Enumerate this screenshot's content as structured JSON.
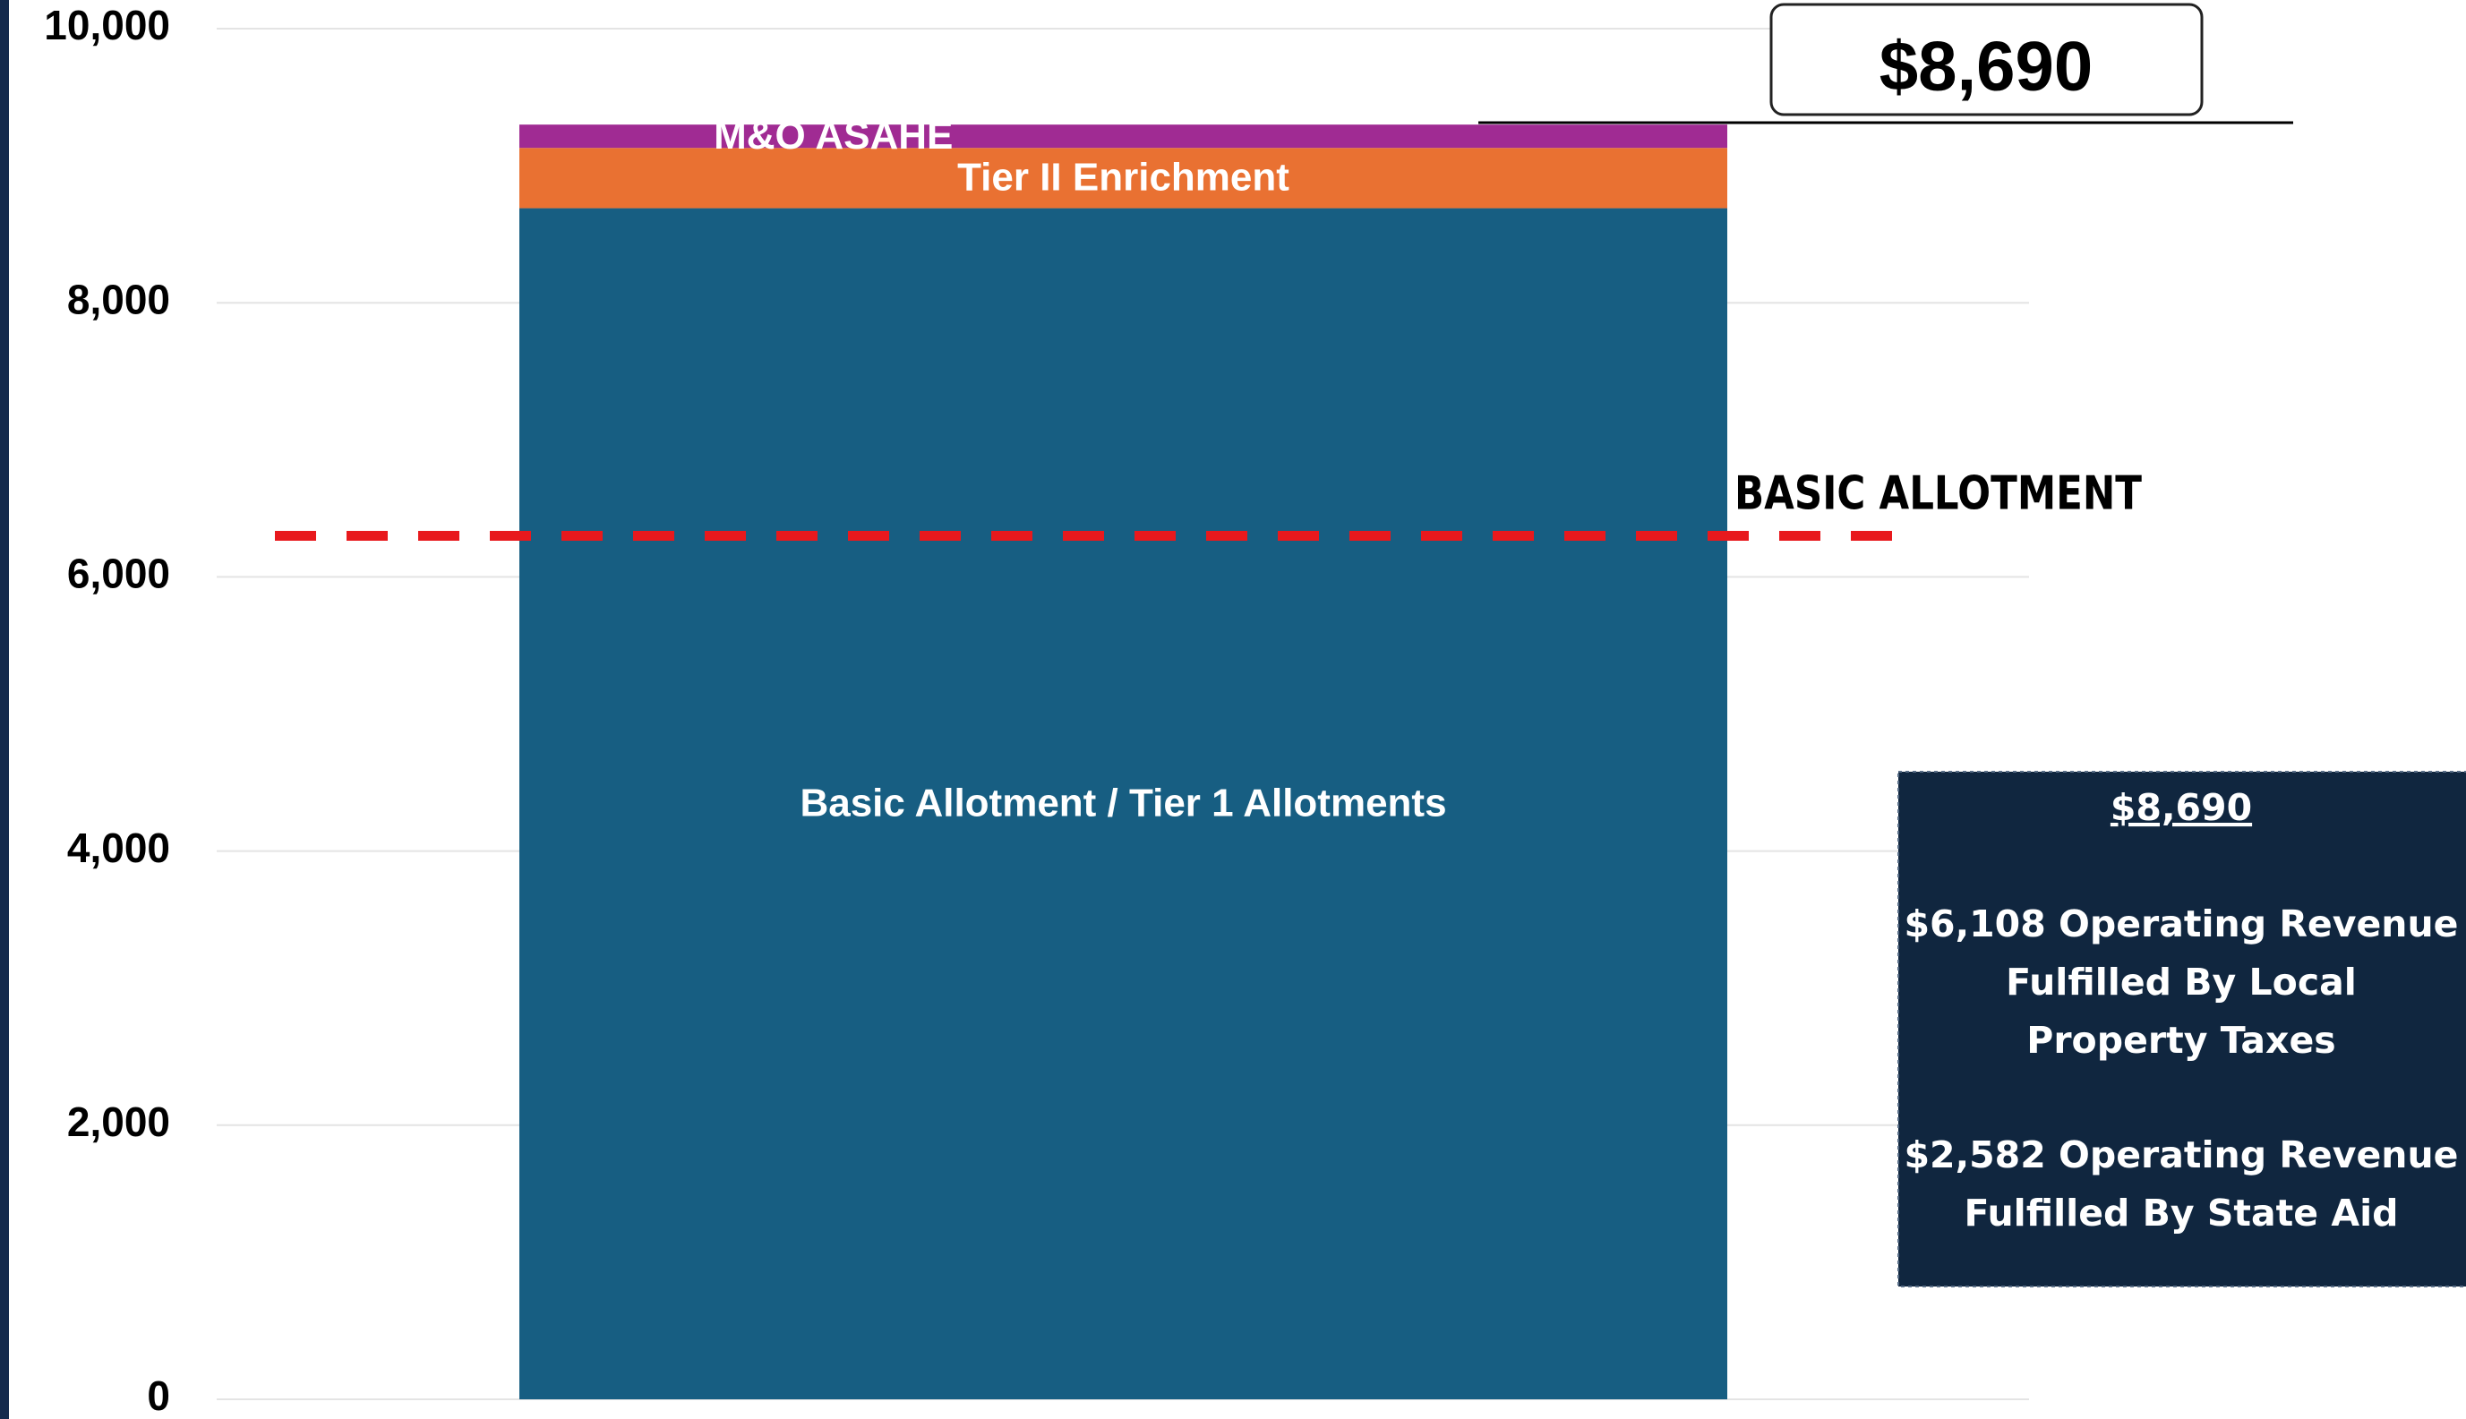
{
  "chart_data": {
    "type": "stacked-bar",
    "categories": [
      null
    ],
    "series": [
      {
        "name": "Basic Allotment / Tier 1 Allotments",
        "color": "#175e82",
        "values": [
          8690
        ]
      },
      {
        "name": "Tier II Enrichment",
        "color": "#e97132",
        "values": [
          440
        ]
      },
      {
        "name": "M&O ASAHE",
        "color": "#a02b93",
        "values": [
          170
        ]
      }
    ],
    "ylim": [
      0,
      10000
    ],
    "yticks": [
      0,
      {
        "value": 2000,
        "label": "2,000"
      },
      {
        "value": 4000,
        "label": "4,000"
      },
      {
        "value": 6000,
        "label": "6,000"
      },
      {
        "value": 8000,
        "label": "8,000"
      },
      {
        "value": 10000,
        "label": "10,000"
      }
    ],
    "grid": true,
    "reference_line": {
      "label": "BASIC ALLOTMENT",
      "value": 6300,
      "color": "#e8191d"
    },
    "total_box": "$8,690",
    "info_box": {
      "title": "$8,690",
      "lines": [
        "$6,108 Operating Revenue",
        "Fulfilled By Local",
        "Property Taxes",
        "$2,582 Operating Revenue",
        "Fulfilled By State Aid"
      ]
    }
  }
}
